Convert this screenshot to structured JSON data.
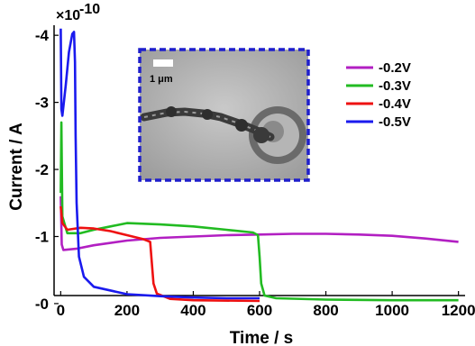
{
  "chart_data": {
    "type": "line",
    "title": "",
    "xlabel": "Time / s",
    "ylabel": "Current / A",
    "y_multiplier": "×10",
    "y_multiplier_exponent": "-10",
    "xlim": [
      -20,
      1220
    ],
    "ylim": [
      -0.12,
      -4.15
    ],
    "x_ticks": [
      0,
      200,
      400,
      600,
      800,
      1000,
      1200
    ],
    "x_tick_labels": [
      "0",
      "200",
      "400",
      "600",
      "800",
      "1000",
      "1200"
    ],
    "y_ticks": [
      0,
      -1,
      -2,
      -3,
      -4
    ],
    "y_tick_labels": [
      "-0",
      "-1",
      "-2",
      "-3",
      "-4"
    ],
    "grid": false,
    "legend_position": "top-right",
    "inset": {
      "description_label": "1 μm",
      "border_color": "#1f1fcc"
    },
    "series": [
      {
        "name": "-0.2V",
        "color": "#b21fc2",
        "points": [
          [
            0,
            -1.6
          ],
          [
            3,
            -0.88
          ],
          [
            8,
            -0.8
          ],
          [
            50,
            -0.82
          ],
          [
            100,
            -0.87
          ],
          [
            200,
            -0.94
          ],
          [
            300,
            -0.98
          ],
          [
            400,
            -1.0
          ],
          [
            500,
            -1.02
          ],
          [
            600,
            -1.03
          ],
          [
            700,
            -1.04
          ],
          [
            800,
            -1.04
          ],
          [
            900,
            -1.03
          ],
          [
            1000,
            -1.01
          ],
          [
            1100,
            -0.97
          ],
          [
            1200,
            -0.92
          ]
        ]
      },
      {
        "name": "-0.3V",
        "color": "#22bb22",
        "points": [
          [
            0,
            -1.65
          ],
          [
            2,
            -2.7
          ],
          [
            5,
            -1.3
          ],
          [
            20,
            -1.05
          ],
          [
            60,
            -1.05
          ],
          [
            100,
            -1.1
          ],
          [
            150,
            -1.15
          ],
          [
            200,
            -1.2
          ],
          [
            300,
            -1.18
          ],
          [
            400,
            -1.15
          ],
          [
            500,
            -1.1
          ],
          [
            580,
            -1.06
          ],
          [
            595,
            -1.02
          ],
          [
            600,
            -0.7
          ],
          [
            605,
            -0.3
          ],
          [
            615,
            -0.12
          ],
          [
            650,
            -0.08
          ],
          [
            800,
            -0.06
          ],
          [
            1000,
            -0.05
          ],
          [
            1200,
            -0.05
          ]
        ]
      },
      {
        "name": "-0.4V",
        "color": "#ee1111",
        "points": [
          [
            0,
            -1.45
          ],
          [
            5,
            -1.2
          ],
          [
            20,
            -1.1
          ],
          [
            60,
            -1.13
          ],
          [
            100,
            -1.12
          ],
          [
            150,
            -1.08
          ],
          [
            200,
            -1.02
          ],
          [
            250,
            -0.96
          ],
          [
            270,
            -0.92
          ],
          [
            275,
            -0.6
          ],
          [
            280,
            -0.3
          ],
          [
            290,
            -0.15
          ],
          [
            330,
            -0.07
          ],
          [
            400,
            -0.05
          ],
          [
            600,
            -0.04
          ]
        ]
      },
      {
        "name": "-0.5V",
        "color": "#1a1aee",
        "points": [
          [
            0,
            -4.1
          ],
          [
            2,
            -2.9
          ],
          [
            5,
            -2.8
          ],
          [
            15,
            -3.25
          ],
          [
            25,
            -3.75
          ],
          [
            35,
            -4.02
          ],
          [
            40,
            -4.05
          ],
          [
            43,
            -3.6
          ],
          [
            45,
            -2.5
          ],
          [
            48,
            -1.5
          ],
          [
            55,
            -0.7
          ],
          [
            70,
            -0.4
          ],
          [
            100,
            -0.25
          ],
          [
            200,
            -0.14
          ],
          [
            300,
            -0.11
          ],
          [
            400,
            -0.09
          ],
          [
            500,
            -0.08
          ],
          [
            600,
            -0.08
          ]
        ]
      }
    ]
  }
}
